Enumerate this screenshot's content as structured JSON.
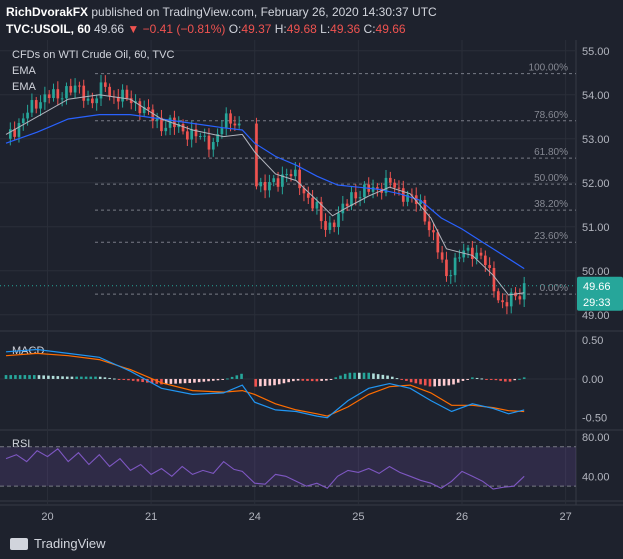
{
  "header": {
    "author": "RichDvorakFX",
    "published": "published on TradingView.com, February 26, 2020 14:30:37 UTC",
    "symbol": "TVC:USOIL, 60",
    "last": "49.66",
    "change": "−0.41 (−0.81%)",
    "o_label": "O:",
    "o": "49.37",
    "h_label": "H:",
    "h": "49.68",
    "l_label": "L:",
    "l": "49.36",
    "c_label": "C:",
    "c": "49.66"
  },
  "legend": {
    "title": "CFDs on WTI Crude Oil, 60, TVC",
    "ema1": "EMA",
    "ema2": "EMA"
  },
  "footer": {
    "logo_text": "TradingView"
  },
  "colors": {
    "background": "#1e222d",
    "up": "#26a69a",
    "down": "#ef5350",
    "ema_fast": "#b2b5be",
    "ema_slow": "#2962ff",
    "macd": "#2196f3",
    "signal": "#ff6d00",
    "rsi": "#7e57c2",
    "fib": "#787b86",
    "price_tag": "#26a69a"
  },
  "chart_data": [
    {
      "type": "candlestick",
      "title": "CFDs on WTI Crude Oil, 60, TVC",
      "ylim": [
        48.7,
        55.2
      ],
      "y_ticks": [
        "55.00",
        "54.00",
        "53.00",
        "52.00",
        "51.00",
        "50.00",
        "49.00"
      ],
      "x_ticks": [
        {
          "label": "20",
          "x": 0.4
        },
        {
          "label": "21",
          "x": 1.4
        },
        {
          "label": "24",
          "x": 2.4
        },
        {
          "label": "25",
          "x": 3.4
        },
        {
          "label": "26",
          "x": 4.4
        },
        {
          "label": "27",
          "x": 5.4
        }
      ],
      "xlim": [
        0,
        5.5
      ],
      "fib_levels": [
        {
          "label": "100.00%",
          "value": 54.48
        },
        {
          "label": "78.60%",
          "value": 53.41
        },
        {
          "label": "61.80%",
          "value": 52.56
        },
        {
          "label": "50.00%",
          "value": 51.97
        },
        {
          "label": "38.20%",
          "value": 51.38
        },
        {
          "label": "23.60%",
          "value": 50.65
        },
        {
          "label": "0.00%",
          "value": 49.47
        }
      ],
      "last_price": {
        "value": 49.66,
        "label": "49.66",
        "countdown": "29:33"
      },
      "close_path": [
        [
          0.0,
          53.0
        ],
        [
          0.1,
          53.25
        ],
        [
          0.2,
          53.6
        ],
        [
          0.3,
          53.8
        ],
        [
          0.4,
          54.05
        ],
        [
          0.5,
          53.9
        ],
        [
          0.6,
          54.2
        ],
        [
          0.7,
          54.1
        ],
        [
          0.8,
          53.85
        ],
        [
          0.9,
          54.0
        ],
        [
          0.95,
          54.3
        ],
        [
          1.0,
          53.95
        ],
        [
          1.1,
          54.0
        ],
        [
          1.2,
          53.85
        ],
        [
          1.3,
          53.75
        ],
        [
          1.4,
          53.5
        ],
        [
          1.5,
          53.3
        ],
        [
          1.6,
          53.35
        ],
        [
          1.7,
          53.2
        ],
        [
          1.8,
          53.1
        ],
        [
          1.9,
          53.0
        ],
        [
          2.0,
          52.9
        ],
        [
          2.05,
          53.1
        ],
        [
          2.1,
          53.35
        ],
        [
          2.15,
          53.5
        ],
        [
          2.2,
          53.4
        ],
        [
          2.28,
          53.2
        ],
        [
          2.4,
          52.4
        ],
        [
          2.42,
          52.0
        ],
        [
          2.5,
          51.9
        ],
        [
          2.6,
          52.0
        ],
        [
          2.7,
          52.25
        ],
        [
          2.8,
          52.1
        ],
        [
          2.9,
          51.7
        ],
        [
          3.0,
          51.4
        ],
        [
          3.05,
          51.05
        ],
        [
          3.1,
          51.0
        ],
        [
          3.2,
          51.2
        ],
        [
          3.3,
          51.6
        ],
        [
          3.35,
          51.8
        ],
        [
          3.4,
          51.7
        ],
        [
          3.5,
          51.85
        ],
        [
          3.6,
          51.9
        ],
        [
          3.7,
          52.0
        ],
        [
          3.8,
          51.8
        ],
        [
          3.9,
          51.65
        ],
        [
          4.0,
          51.5
        ],
        [
          4.05,
          51.2
        ],
        [
          4.1,
          50.9
        ],
        [
          4.15,
          50.6
        ],
        [
          4.2,
          50.2
        ],
        [
          4.25,
          49.9
        ],
        [
          4.3,
          50.1
        ],
        [
          4.4,
          50.4
        ],
        [
          4.5,
          50.45
        ],
        [
          4.6,
          50.3
        ],
        [
          4.65,
          50.0
        ],
        [
          4.7,
          49.7
        ],
        [
          4.75,
          49.4
        ],
        [
          4.8,
          49.2
        ],
        [
          4.85,
          49.3
        ],
        [
          4.9,
          49.4
        ],
        [
          4.95,
          49.45
        ],
        [
          5.0,
          49.66
        ]
      ],
      "ema_fast": [
        [
          0.0,
          53.1
        ],
        [
          0.3,
          53.5
        ],
        [
          0.6,
          53.9
        ],
        [
          0.9,
          54.0
        ],
        [
          1.2,
          53.9
        ],
        [
          1.5,
          53.45
        ],
        [
          1.8,
          53.2
        ],
        [
          2.1,
          53.05
        ],
        [
          2.28,
          53.1
        ],
        [
          2.4,
          52.7
        ],
        [
          2.6,
          52.2
        ],
        [
          2.8,
          52.05
        ],
        [
          3.0,
          51.6
        ],
        [
          3.15,
          51.25
        ],
        [
          3.3,
          51.45
        ],
        [
          3.5,
          51.7
        ],
        [
          3.7,
          51.9
        ],
        [
          3.9,
          51.75
        ],
        [
          4.1,
          51.2
        ],
        [
          4.25,
          50.5
        ],
        [
          4.5,
          50.35
        ],
        [
          4.7,
          49.9
        ],
        [
          4.85,
          49.45
        ],
        [
          5.0,
          49.5
        ]
      ],
      "ema_slow": [
        [
          0.0,
          52.9
        ],
        [
          0.3,
          53.15
        ],
        [
          0.6,
          53.45
        ],
        [
          0.9,
          53.55
        ],
        [
          1.2,
          53.55
        ],
        [
          1.5,
          53.45
        ],
        [
          1.8,
          53.35
        ],
        [
          2.1,
          53.25
        ],
        [
          2.28,
          53.2
        ],
        [
          2.4,
          52.9
        ],
        [
          2.6,
          52.6
        ],
        [
          2.8,
          52.4
        ],
        [
          3.0,
          52.15
        ],
        [
          3.2,
          51.95
        ],
        [
          3.4,
          51.9
        ],
        [
          3.6,
          51.85
        ],
        [
          3.8,
          51.75
        ],
        [
          4.0,
          51.6
        ],
        [
          4.2,
          51.2
        ],
        [
          4.4,
          50.95
        ],
        [
          4.6,
          50.65
        ],
        [
          4.8,
          50.35
        ],
        [
          5.0,
          50.05
        ]
      ]
    },
    {
      "type": "line",
      "title": "MACD",
      "ylim": [
        -0.62,
        0.58
      ],
      "y_ticks": [
        "0.50",
        "0.00",
        "-0.50"
      ],
      "macd": [
        [
          0.0,
          0.35
        ],
        [
          0.3,
          0.38
        ],
        [
          0.6,
          0.33
        ],
        [
          0.9,
          0.28
        ],
        [
          1.2,
          0.1
        ],
        [
          1.5,
          -0.12
        ],
        [
          1.8,
          -0.2
        ],
        [
          2.1,
          -0.18
        ],
        [
          2.28,
          -0.08
        ],
        [
          2.4,
          -0.3
        ],
        [
          2.6,
          -0.4
        ],
        [
          2.8,
          -0.42
        ],
        [
          3.0,
          -0.48
        ],
        [
          3.1,
          -0.5
        ],
        [
          3.3,
          -0.28
        ],
        [
          3.5,
          -0.12
        ],
        [
          3.7,
          -0.06
        ],
        [
          3.9,
          -0.12
        ],
        [
          4.1,
          -0.28
        ],
        [
          4.3,
          -0.42
        ],
        [
          4.5,
          -0.32
        ],
        [
          4.7,
          -0.38
        ],
        [
          4.85,
          -0.45
        ],
        [
          5.0,
          -0.4
        ]
      ],
      "signal": [
        [
          0.0,
          0.3
        ],
        [
          0.3,
          0.33
        ],
        [
          0.6,
          0.3
        ],
        [
          0.9,
          0.25
        ],
        [
          1.2,
          0.12
        ],
        [
          1.5,
          -0.05
        ],
        [
          1.8,
          -0.15
        ],
        [
          2.1,
          -0.17
        ],
        [
          2.28,
          -0.15
        ],
        [
          2.4,
          -0.2
        ],
        [
          2.6,
          -0.32
        ],
        [
          2.8,
          -0.4
        ],
        [
          3.0,
          -0.45
        ],
        [
          3.1,
          -0.48
        ],
        [
          3.3,
          -0.36
        ],
        [
          3.5,
          -0.2
        ],
        [
          3.7,
          -0.1
        ],
        [
          3.9,
          -0.08
        ],
        [
          4.1,
          -0.18
        ],
        [
          4.3,
          -0.34
        ],
        [
          4.5,
          -0.34
        ],
        [
          4.7,
          -0.37
        ],
        [
          4.85,
          -0.41
        ],
        [
          5.0,
          -0.42
        ]
      ]
    },
    {
      "type": "line",
      "title": "RSI",
      "ylim": [
        18,
        84
      ],
      "y_ticks": [
        "80.00",
        "40.00"
      ],
      "bands": [
        70,
        30
      ],
      "rsi": [
        [
          0.0,
          58
        ],
        [
          0.1,
          62
        ],
        [
          0.2,
          55
        ],
        [
          0.3,
          66
        ],
        [
          0.4,
          60
        ],
        [
          0.5,
          68
        ],
        [
          0.6,
          55
        ],
        [
          0.7,
          64
        ],
        [
          0.8,
          52
        ],
        [
          0.9,
          62
        ],
        [
          1.0,
          50
        ],
        [
          1.1,
          58
        ],
        [
          1.2,
          46
        ],
        [
          1.3,
          52
        ],
        [
          1.4,
          42
        ],
        [
          1.5,
          48
        ],
        [
          1.6,
          40
        ],
        [
          1.7,
          50
        ],
        [
          1.8,
          42
        ],
        [
          1.9,
          46
        ],
        [
          2.0,
          43
        ],
        [
          2.1,
          55
        ],
        [
          2.2,
          47
        ],
        [
          2.28,
          45
        ],
        [
          2.4,
          33
        ],
        [
          2.5,
          32
        ],
        [
          2.6,
          42
        ],
        [
          2.7,
          40
        ],
        [
          2.8,
          35
        ],
        [
          2.9,
          30
        ],
        [
          3.0,
          33
        ],
        [
          3.1,
          28
        ],
        [
          3.2,
          40
        ],
        [
          3.3,
          46
        ],
        [
          3.4,
          44
        ],
        [
          3.5,
          48
        ],
        [
          3.6,
          43
        ],
        [
          3.7,
          50
        ],
        [
          3.8,
          44
        ],
        [
          3.9,
          40
        ],
        [
          4.0,
          36
        ],
        [
          4.1,
          33
        ],
        [
          4.2,
          28
        ],
        [
          4.3,
          35
        ],
        [
          4.4,
          45
        ],
        [
          4.5,
          40
        ],
        [
          4.6,
          35
        ],
        [
          4.7,
          27
        ],
        [
          4.8,
          29
        ],
        [
          4.9,
          30
        ],
        [
          5.0,
          40
        ]
      ]
    }
  ]
}
